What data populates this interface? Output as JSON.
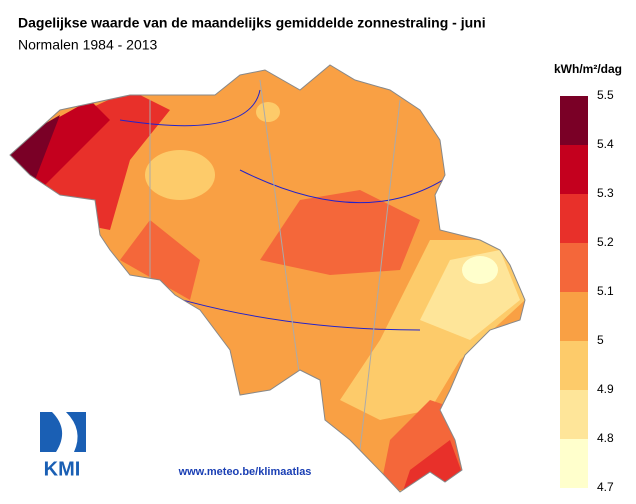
{
  "header": {
    "title": "Dagelijkse waarde van de maandelijks gemiddelde zonnestraling - juni",
    "subtitle": "Normalen 1984 - 2013"
  },
  "legend": {
    "unit": "kWh/m²/dag",
    "ticks": [
      5.5,
      5.4,
      5.3,
      5.2,
      5.1,
      5,
      4.9,
      4.8,
      4.7
    ],
    "colors": [
      "#7a0026",
      "#c4001e",
      "#e8302a",
      "#f4673a",
      "#f9a044",
      "#fdcb6a",
      "#fee599",
      "#ffffcc"
    ]
  },
  "footer": {
    "url": "www.meteo.be/klimaatlas"
  },
  "logo": {
    "text": "KMI"
  }
}
